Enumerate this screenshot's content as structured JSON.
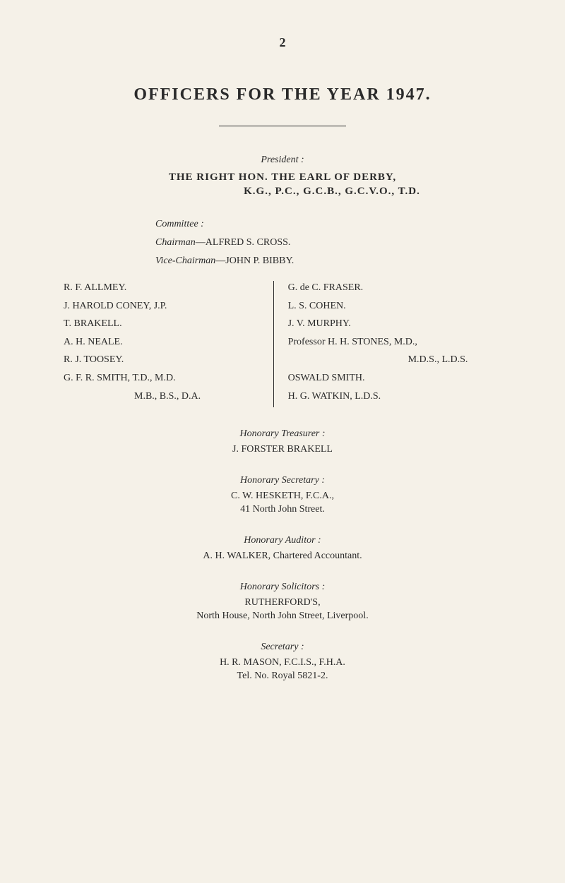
{
  "pageNumber": "2",
  "mainTitle": "OFFICERS FOR THE YEAR 1947.",
  "president": {
    "label": "President :",
    "name": "THE RIGHT HON. THE EARL OF DERBY,",
    "honors": "K.G., P.C., G.C.B., G.C.V.O., T.D."
  },
  "committee": {
    "label": "Committee :",
    "chairmanTitle": "Chairman",
    "chairmanName": "—ALFRED S. CROSS.",
    "viceChairmanTitle": "Vice-Chairman",
    "viceChairmanName": "—JOHN P. BIBBY.",
    "leftColumn": [
      "R. F. ALLMEY.",
      "J. HAROLD CONEY, J.P.",
      "T. BRAKELL.",
      "A. H. NEALE.",
      "R. J. TOOSEY.",
      "G. F. R. SMITH, T.D., M.D."
    ],
    "leftColumnIndent": "M.B., B.S., D.A.",
    "rightColumn": [
      "G. de C. FRASER.",
      "L. S. COHEN.",
      "J. V. MURPHY.",
      "Professor H. H. STONES, M.D.,"
    ],
    "rightColumnIndent": "M.D.S., L.D.S.",
    "rightColumnAfter": [
      "OSWALD SMITH.",
      "H. G. WATKIN, L.D.S."
    ]
  },
  "treasurer": {
    "label": "Honorary Treasurer :",
    "name": "J. FORSTER BRAKELL"
  },
  "secretary": {
    "label": "Honorary Secretary :",
    "name": "C. W. HESKETH, F.C.A.,",
    "address": "41 North John Street."
  },
  "auditor": {
    "label": "Honorary Auditor :",
    "name": "A. H. WALKER, Chartered Accountant."
  },
  "solicitors": {
    "label": "Honorary Solicitors :",
    "name": "RUTHERFORD'S,",
    "address": "North House, North John Street, Liverpool."
  },
  "secretaryMain": {
    "label": "Secretary :",
    "name": "H. R. MASON, F.C.I.S., F.H.A.",
    "tel": "Tel. No. Royal 5821-2."
  }
}
